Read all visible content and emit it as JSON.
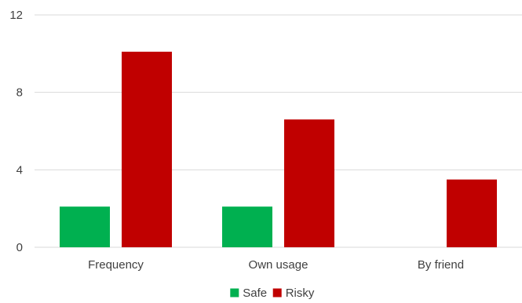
{
  "chart_data": {
    "type": "bar",
    "title": "",
    "xlabel": "",
    "ylabel": "",
    "categories": [
      "Frequency",
      "Own usage",
      "By friend"
    ],
    "series": [
      {
        "name": "Safe",
        "color": "#00b050",
        "values": [
          2.1,
          2.1,
          0
        ]
      },
      {
        "name": "Risky",
        "color": "#c00000",
        "values": [
          10.1,
          6.6,
          3.5
        ]
      }
    ],
    "ylim": [
      0,
      12
    ],
    "yticks": [
      0,
      4,
      8,
      12
    ],
    "grid": true,
    "gridColor": "#d9d9d9",
    "legend": "bottom-center"
  }
}
